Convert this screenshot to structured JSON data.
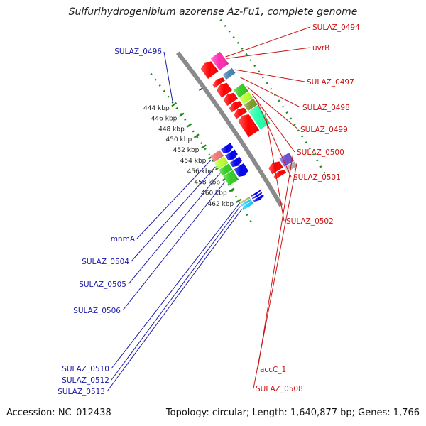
{
  "title": "Sulfurihydrogenibium azorense Az-Fu1, complete genome",
  "accession": "Accession: NC_012438",
  "topology": "Topology: circular; Length: 1,640,877 bp; Genes: 1,766",
  "colors": {
    "backbone": "#8a8a8a",
    "tick": "#1a8a1a",
    "forward_label": "#1a1aa8",
    "reverse_label": "#cc1111",
    "red": "#ff0000",
    "magenta": "#ff2bb0",
    "steelblue": "#4a82b4",
    "green": "#33cc22",
    "lime": "#b8ff33",
    "olive": "#7a9a2a",
    "springgreen": "#22ffaa",
    "salmon": "#ee7777",
    "blue": "#0000ee",
    "purple": "#6b4fd0",
    "gray": "#b0b0b0",
    "tan": "#c8b878",
    "cyan": "#22ccff"
  },
  "axis": {
    "unit": "kbp",
    "ticks": [
      {
        "value": 444,
        "label": "444 kbp"
      },
      {
        "value": 446,
        "label": "446 kbp"
      },
      {
        "value": 448,
        "label": "448 kbp"
      },
      {
        "value": 450,
        "label": "450 kbp"
      },
      {
        "value": 452,
        "label": "452 kbp"
      },
      {
        "value": 454,
        "label": "454 kbp"
      },
      {
        "value": 456,
        "label": "456 kbp"
      },
      {
        "value": 458,
        "label": "458 kbp"
      },
      {
        "value": 460,
        "label": "460 kbp"
      },
      {
        "value": 462,
        "label": "462 kbp"
      }
    ]
  },
  "genes": [
    {
      "label": "SULAZ_0494",
      "strand": "reverse",
      "start": 441.7,
      "end": 443.9
    },
    {
      "label": "uvrB",
      "strand": "reverse",
      "start": 441.7,
      "end": 443.9
    },
    {
      "label": "",
      "strand": "forward",
      "start": 444.5,
      "end": 444.6
    },
    {
      "label": "SULAZ_0497",
      "strand": "reverse",
      "start": 444.7,
      "end": 445.6
    },
    {
      "label": "SULAZ_0498",
      "strand": "reverse",
      "start": 445.7,
      "end": 447.4
    },
    {
      "label": "SULAZ_0499",
      "strand": "reverse",
      "start": 447.5,
      "end": 448.9
    },
    {
      "label": "SULAZ_0500",
      "strand": "reverse",
      "start": 449.0,
      "end": 450.1
    },
    {
      "label": "SULAZ_0501",
      "strand": "reverse",
      "start": 450.2,
      "end": 451.3
    },
    {
      "label": "SULAZ_0502",
      "strand": "reverse",
      "start": 451.4,
      "end": 454.6
    },
    {
      "label": "mnmA",
      "strand": "forward",
      "start": 453.8,
      "end": 454.9
    },
    {
      "label": "SULAZ_0504",
      "strand": "forward",
      "start": 455.0,
      "end": 456.2
    },
    {
      "label": "SULAZ_0505",
      "strand": "forward",
      "start": 456.3,
      "end": 457.4
    },
    {
      "label": "SULAZ_0506",
      "strand": "forward",
      "start": 457.5,
      "end": 459.2
    },
    {
      "label": "accC_1",
      "strand": "reverse",
      "start": 459.8,
      "end": 461.2
    },
    {
      "label": "SULAZ_0508",
      "strand": "reverse",
      "start": 461.3,
      "end": 462.1
    },
    {
      "label": "SULAZ_0510",
      "strand": "forward",
      "start": 462.3,
      "end": 462.6
    },
    {
      "label": "SULAZ_0512",
      "strand": "forward",
      "start": 462.7,
      "end": 463.0
    },
    {
      "label": "SULAZ_0513",
      "strand": "forward",
      "start": 463.1,
      "end": 463.6
    }
  ]
}
